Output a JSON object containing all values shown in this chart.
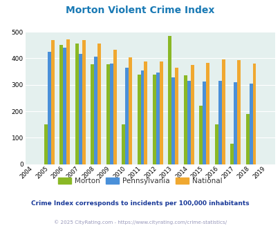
{
  "title": "Morton Violent Crime Index",
  "title_color": "#1a7ab5",
  "years": [
    2004,
    2005,
    2006,
    2007,
    2008,
    2009,
    2010,
    2011,
    2012,
    2013,
    2014,
    2015,
    2016,
    2017,
    2018,
    2019
  ],
  "morton": [
    0,
    150,
    450,
    455,
    378,
    378,
    150,
    338,
    338,
    484,
    335,
    222,
    150,
    78,
    190,
    0
  ],
  "pennsylvania": [
    0,
    424,
    440,
    417,
    407,
    380,
    365,
    353,
    347,
    327,
    314,
    313,
    314,
    310,
    305,
    0
  ],
  "national": [
    0,
    470,
    473,
    468,
    455,
    432,
    405,
    387,
    387,
    365,
    375,
    383,
    397,
    393,
    380,
    0
  ],
  "morton_color": "#8ab825",
  "pennsylvania_color": "#4a90d9",
  "national_color": "#f0a830",
  "bg_color": "#e4f0ee",
  "ylim": [
    0,
    500
  ],
  "yticks": [
    0,
    100,
    200,
    300,
    400,
    500
  ],
  "subtitle": "Crime Index corresponds to incidents per 100,000 inhabitants",
  "subtitle_color": "#1a3a99",
  "footer": "© 2025 CityRating.com - https://www.cityrating.com/crime-statistics/",
  "footer_color": "#9999bb",
  "legend_labels": [
    "Morton",
    "Pennsylvania",
    "National"
  ],
  "bar_width": 0.22
}
